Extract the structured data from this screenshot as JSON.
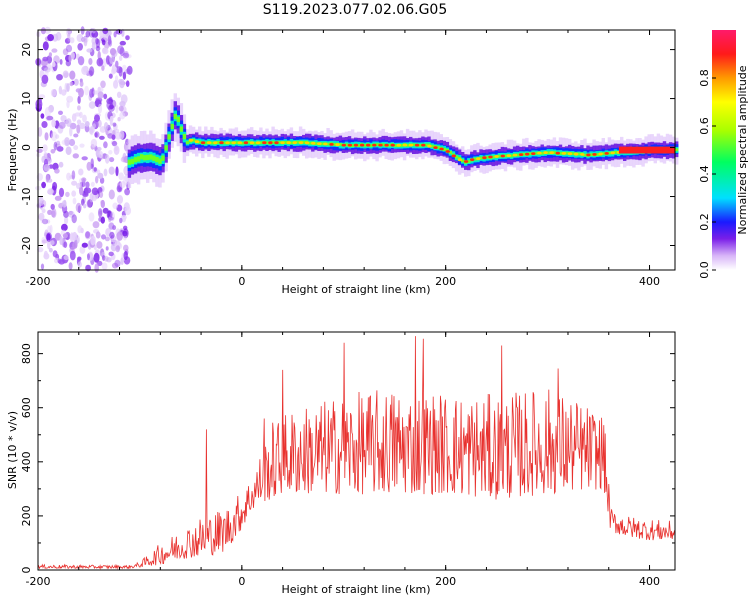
{
  "title": "S119.2023.077.02.06.G05",
  "chart_data": [
    {
      "type": "heatmap",
      "title": "",
      "xlabel": "Height of straight line (km)",
      "ylabel": "Frequency (Hz)",
      "xlim": [
        -200,
        425
      ],
      "ylim": [
        -25,
        24
      ],
      "x_ticks": [
        -200,
        0,
        200,
        400
      ],
      "y_ticks": [
        -20,
        -10,
        0,
        10,
        20
      ],
      "noise_band_x": [
        -200,
        -110
      ],
      "ridge": {
        "x": [
          -112,
          -100,
          -90,
          -80,
          -72,
          -66,
          -60,
          -55,
          -50,
          -40,
          -20,
          0,
          30,
          60,
          100,
          150,
          180,
          200,
          210,
          218,
          225,
          240,
          270,
          300,
          340,
          370,
          400,
          425
        ],
        "freq": [
          -3,
          -2,
          -2,
          -3,
          3,
          7,
          3,
          1,
          1.5,
          1,
          1,
          1,
          1,
          1,
          0.5,
          0.5,
          0.5,
          -0.5,
          -2,
          -3,
          -2.5,
          -2,
          -1.5,
          -1,
          -1.5,
          -1,
          -0.5,
          -0.5
        ]
      },
      "colorbar": {
        "label": "Normalized spectral amplitude",
        "range": [
          0.0,
          1.0
        ],
        "ticks": [
          0.0,
          0.2,
          0.4,
          0.6,
          0.8
        ],
        "tick_labels": [
          "0.0",
          "0.2",
          "0.4",
          "0.6",
          "0.8"
        ]
      }
    },
    {
      "type": "line",
      "title": "",
      "xlabel": "Height of straight line (km)",
      "ylabel": "SNR (10 * v/v)",
      "xlim": [
        -200,
        425
      ],
      "ylim": [
        0,
        880
      ],
      "x_ticks": [
        -200,
        0,
        200,
        400
      ],
      "y_ticks": [
        0,
        200,
        400,
        600,
        800
      ],
      "color": "#e8312e",
      "envelope": {
        "x": [
          -200,
          -150,
          -110,
          -100,
          -80,
          -60,
          -40,
          -20,
          -10,
          0,
          10,
          20,
          30,
          50,
          100,
          150,
          200,
          250,
          300,
          330,
          355,
          362,
          380,
          400,
          425
        ],
        "low": [
          6,
          6,
          6,
          10,
          20,
          40,
          50,
          60,
          100,
          150,
          220,
          250,
          260,
          280,
          280,
          280,
          280,
          260,
          280,
          290,
          300,
          140,
          120,
          110,
          110
        ],
        "high": [
          20,
          18,
          18,
          30,
          100,
          150,
          200,
          230,
          250,
          300,
          350,
          450,
          550,
          600,
          650,
          680,
          660,
          650,
          680,
          630,
          580,
          230,
          200,
          190,
          180
        ]
      },
      "peaks": [
        {
          "x": 100,
          "y": 840
        },
        {
          "x": 170,
          "y": 865
        },
        {
          "x": 178,
          "y": 855
        },
        {
          "x": 255,
          "y": 830
        },
        {
          "x": 40,
          "y": 740
        },
        {
          "x": 310,
          "y": 745
        },
        {
          "x": -35,
          "y": 520
        },
        {
          "x": 22,
          "y": 560
        }
      ]
    }
  ]
}
